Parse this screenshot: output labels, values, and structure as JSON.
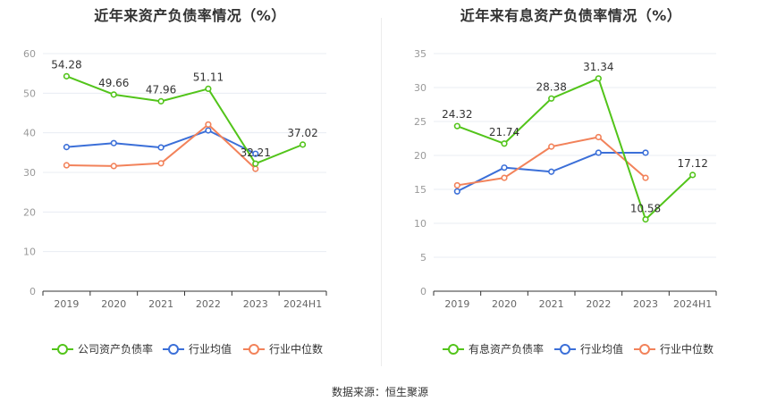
{
  "source_label": "数据来源：恒生聚源",
  "colors": {
    "primary": "#52c41a",
    "average": "#3b6fd8",
    "median": "#f2825a",
    "grid": "#e8ecf3",
    "axis": "#666666"
  },
  "chart_data": [
    {
      "type": "line",
      "title": "近年来资产负债率情况（%）",
      "categories": [
        "2019",
        "2020",
        "2021",
        "2022",
        "2023",
        "2024H1"
      ],
      "ylim": [
        0,
        60
      ],
      "yticks": [
        0,
        10,
        20,
        30,
        40,
        50,
        60
      ],
      "grid": true,
      "legend_position": "bottom",
      "series": [
        {
          "name": "公司资产负债率",
          "color": "#52c41a",
          "values": [
            54.28,
            49.66,
            47.96,
            51.11,
            32.21,
            37.02
          ],
          "labels": [
            "54.28",
            "49.66",
            "47.96",
            "51.11",
            "32.21",
            "37.02"
          ]
        },
        {
          "name": "行业均值",
          "color": "#3b6fd8",
          "values": [
            36.4,
            37.4,
            36.3,
            40.6,
            34.7,
            null
          ]
        },
        {
          "name": "行业中位数",
          "color": "#f2825a",
          "values": [
            31.8,
            31.6,
            32.3,
            42.1,
            30.9,
            null
          ]
        }
      ]
    },
    {
      "type": "line",
      "title": "近年来有息资产负债率情况（%）",
      "categories": [
        "2019",
        "2020",
        "2021",
        "2022",
        "2023",
        "2024H1"
      ],
      "ylim": [
        0,
        35
      ],
      "yticks": [
        0,
        5,
        10,
        15,
        20,
        25,
        30,
        35
      ],
      "grid": true,
      "legend_position": "bottom",
      "series": [
        {
          "name": "有息资产负债率",
          "color": "#52c41a",
          "values": [
            24.32,
            21.74,
            28.38,
            31.34,
            10.58,
            17.12
          ],
          "labels": [
            "24.32",
            "21.74",
            "28.38",
            "31.34",
            "10.58",
            "17.12"
          ]
        },
        {
          "name": "行业均值",
          "color": "#3b6fd8",
          "values": [
            14.7,
            18.2,
            17.6,
            20.4,
            20.4,
            null
          ]
        },
        {
          "name": "行业中位数",
          "color": "#f2825a",
          "values": [
            15.6,
            16.7,
            21.3,
            22.7,
            16.7,
            null
          ]
        }
      ]
    }
  ]
}
